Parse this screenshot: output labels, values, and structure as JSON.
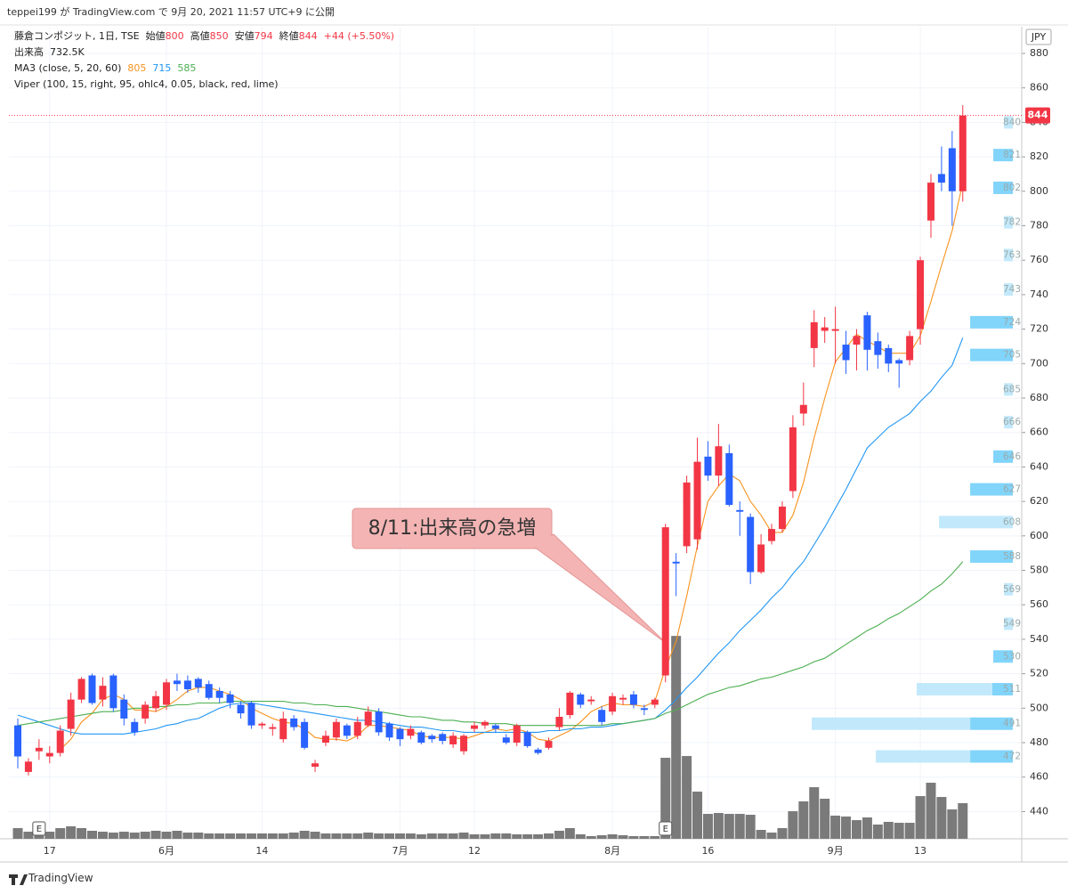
{
  "header": "teppei199 が TradingView.com で 9月 20, 2021 11:57 UTC+9 に公開",
  "footer": "TradingView",
  "chart_data": {
    "type": "candlestick",
    "title": "藤倉コンポジット, 1日, TSE",
    "ohlc_labels": [
      "始値",
      "高値",
      "安値",
      "終値"
    ],
    "change": "+44 (+5.50%)",
    "currency": "JPY",
    "up_color": "#f23645",
    "down_color": "#2962ff",
    "grid": true,
    "categories": [
      null,
      null,
      null,
      "17",
      null,
      null,
      null,
      null,
      null,
      null,
      null,
      null,
      null,
      null,
      "6月",
      null,
      null,
      null,
      null,
      null,
      null,
      null,
      null,
      "14",
      null,
      null,
      null,
      null,
      null,
      null,
      null,
      null,
      null,
      null,
      null,
      null,
      "7月",
      null,
      null,
      null,
      null,
      null,
      null,
      "12",
      null,
      null,
      null,
      null,
      null,
      null,
      null,
      null,
      null,
      null,
      null,
      null,
      "8月",
      null,
      null,
      null,
      null,
      null,
      null,
      null,
      null,
      "16",
      null,
      null,
      null,
      null,
      null,
      null,
      null,
      null,
      null,
      null,
      null,
      "9月",
      null,
      null,
      null,
      null,
      null,
      null,
      null,
      "13",
      null,
      null,
      null,
      null
    ],
    "open": [
      490,
      463,
      475,
      472,
      474,
      488,
      505,
      519,
      505,
      519,
      505,
      492,
      494,
      500,
      502,
      516,
      516,
      517,
      514,
      510,
      508,
      502,
      503,
      490,
      488,
      482,
      494,
      492,
      466,
      480,
      483,
      490,
      484,
      490,
      498,
      491,
      488,
      484,
      486,
      484,
      485,
      479,
      475,
      488,
      490,
      490,
      483,
      480,
      486,
      476,
      477,
      489,
      496,
      508,
      504,
      499,
      498,
      505,
      508,
      500,
      502,
      519,
      585,
      594,
      598,
      646,
      635,
      648,
      615,
      611,
      579,
      597,
      604,
      626,
      671,
      709,
      719,
      719,
      711,
      711,
      728,
      713,
      709,
      702,
      702,
      720,
      783,
      810,
      825,
      800
    ],
    "high": [
      494,
      471,
      482,
      478,
      490,
      509,
      518,
      520,
      518,
      520,
      508,
      494,
      504,
      510,
      517,
      520,
      519,
      518,
      516,
      512,
      510,
      504,
      504,
      492,
      491,
      498,
      496,
      494,
      470,
      487,
      494,
      491,
      495,
      501,
      500,
      492,
      489,
      490,
      487,
      485,
      486,
      486,
      485,
      492,
      493,
      491,
      485,
      491,
      487,
      477,
      483,
      500,
      510,
      509,
      507,
      501,
      509,
      508,
      510,
      502,
      506,
      607,
      590,
      635,
      657,
      655,
      665,
      653,
      620,
      613,
      601,
      607,
      620,
      670,
      689,
      731,
      727,
      733,
      719,
      720,
      730,
      718,
      711,
      703,
      719,
      762,
      810,
      826,
      835,
      850
    ],
    "low": [
      465,
      461,
      470,
      468,
      472,
      484,
      503,
      502,
      501,
      498,
      490,
      484,
      491,
      498,
      499,
      510,
      509,
      509,
      505,
      503,
      500,
      494,
      488,
      488,
      484,
      480,
      487,
      476,
      463,
      478,
      481,
      482,
      482,
      489,
      484,
      481,
      478,
      482,
      479,
      480,
      479,
      477,
      473,
      486,
      488,
      486,
      479,
      478,
      477,
      473,
      476,
      487,
      494,
      500,
      502,
      490,
      496,
      502,
      500,
      496,
      500,
      515,
      565,
      590,
      592,
      632,
      629,
      617,
      600,
      572,
      578,
      595,
      602,
      622,
      664,
      698,
      712,
      700,
      694,
      696,
      696,
      697,
      695,
      686,
      699,
      711,
      773,
      800,
      780,
      794
    ],
    "close": [
      472,
      469,
      477,
      474,
      487,
      505,
      517,
      503,
      513,
      500,
      494,
      486,
      502,
      507,
      515,
      514,
      511,
      512,
      506,
      506,
      503,
      497,
      490,
      491,
      489,
      494,
      489,
      477,
      468,
      484,
      492,
      484,
      492,
      498,
      486,
      483,
      482,
      488,
      480,
      482,
      481,
      484,
      484,
      490,
      492,
      488,
      480,
      490,
      478,
      474,
      481,
      495,
      509,
      502,
      505,
      492,
      507,
      506,
      502,
      499,
      505,
      605,
      584,
      631,
      643,
      635,
      652,
      618,
      614,
      579,
      595,
      604,
      617,
      663,
      676,
      724,
      721,
      720,
      702,
      716,
      708,
      705,
      700,
      700,
      716,
      760,
      805,
      805,
      800,
      844
    ],
    "ylim": [
      424.2,
      895.5
    ],
    "yticks": [
      440,
      460,
      480,
      500,
      520,
      540,
      560,
      580,
      600,
      620,
      640,
      660,
      680,
      700,
      720,
      740,
      760,
      780,
      800,
      820,
      840,
      860,
      880
    ],
    "earnings": {
      "label": "E",
      "categories": [
        2,
        61
      ]
    },
    "annotation": "8/11:出来高の急増",
    "volume": {
      "label": "出来高",
      "color": "#7a7a7a",
      "ylim": [
        0,
        16700
      ],
      "values": [
        220,
        146,
        146,
        146,
        220,
        256,
        220,
        165,
        146,
        128,
        146,
        128,
        146,
        165,
        146,
        165,
        128,
        128,
        110,
        110,
        110,
        110,
        110,
        110,
        110,
        110,
        128,
        165,
        146,
        110,
        110,
        110,
        110,
        128,
        110,
        110,
        110,
        110,
        92,
        110,
        110,
        110,
        128,
        92,
        92,
        110,
        110,
        92,
        92,
        92,
        110,
        165,
        220,
        92,
        55,
        73,
        92,
        73,
        55,
        55,
        55,
        1666,
        4172,
        1702,
        970,
        512,
        531,
        512,
        512,
        494,
        183,
        128,
        220,
        567,
        769,
        1061,
        824,
        476,
        458,
        384,
        439,
        293,
        348,
        329,
        329,
        878,
        1153,
        860,
        604,
        732.5
      ],
      "value_labels": [
        null,
        null,
        null,
        null,
        null,
        null,
        null,
        null,
        null,
        null,
        null,
        null,
        null,
        null,
        null,
        null,
        null,
        null,
        null,
        null,
        null,
        null,
        null,
        null,
        null,
        null,
        null,
        null,
        null,
        null,
        null,
        null,
        null,
        null,
        null,
        null,
        null,
        null,
        null,
        null,
        null,
        null,
        null,
        null,
        null,
        null,
        null,
        null,
        null,
        null,
        null,
        null,
        null,
        null,
        null,
        null,
        null,
        null,
        null,
        null,
        null,
        null,
        null,
        null,
        null,
        null,
        null,
        null,
        null,
        null,
        null,
        null,
        null,
        null,
        null,
        null,
        null,
        null,
        null,
        null,
        null,
        null,
        null,
        null,
        null,
        null,
        null,
        null,
        null,
        "732.5K"
      ]
    },
    "ma": {
      "label": "MA3 (close, 5, 20, 60)",
      "series": [
        {
          "color": "#f7931e",
          "values": [
            null,
            null,
            null,
            null,
            476,
            482,
            492,
            497,
            505,
            508,
            505,
            499,
            499,
            498,
            501,
            505,
            510,
            512,
            512,
            510,
            508,
            505,
            500,
            497,
            494,
            492,
            491,
            488,
            483,
            482,
            482,
            481,
            484,
            490,
            490,
            489,
            488,
            487,
            484,
            483,
            483,
            483,
            482,
            484,
            486,
            488,
            487,
            488,
            486,
            482,
            481,
            484,
            487,
            492,
            498,
            501,
            503,
            502,
            502,
            501,
            504,
            523,
            539,
            565,
            594,
            620,
            629,
            636,
            632,
            620,
            612,
            602,
            602,
            612,
            631,
            657,
            680,
            701,
            709,
            717,
            713,
            710,
            706,
            706,
            706,
            716,
            736,
            757,
            777,
            805
          ]
        },
        {
          "color": "#2196f3",
          "values": [
            496,
            494,
            492,
            490,
            488,
            486,
            485,
            485,
            485,
            485,
            485,
            486,
            487,
            488,
            490,
            491,
            493,
            494,
            497,
            500,
            502,
            503,
            503,
            502,
            501,
            500,
            499,
            498,
            497,
            496,
            495,
            494,
            493,
            493,
            492,
            491,
            490,
            489,
            489,
            488,
            487,
            487,
            486,
            486,
            486,
            486,
            486,
            486,
            486,
            486,
            487,
            487,
            488,
            488,
            489,
            489,
            490,
            491,
            492,
            493,
            494,
            499,
            505,
            512,
            518,
            525,
            532,
            538,
            545,
            551,
            557,
            564,
            570,
            578,
            585,
            595,
            605,
            616,
            627,
            639,
            651,
            657,
            663,
            667,
            671,
            678,
            684,
            692,
            699,
            715
          ]
        },
        {
          "color": "#4caf50",
          "values": [
            490,
            491,
            492,
            493,
            494,
            495,
            496,
            497,
            498,
            498,
            499,
            500,
            500,
            501,
            501,
            502,
            502,
            503,
            503,
            503,
            504,
            504,
            504,
            504,
            504,
            504,
            503,
            503,
            502,
            502,
            501,
            501,
            500,
            499,
            498,
            497,
            496,
            495,
            495,
            494,
            493,
            493,
            492,
            492,
            491,
            491,
            491,
            490,
            490,
            490,
            490,
            490,
            490,
            490,
            490,
            490,
            491,
            491,
            492,
            493,
            494,
            497,
            499,
            502,
            505,
            508,
            510,
            512,
            513,
            515,
            517,
            518,
            520,
            522,
            524,
            527,
            529,
            533,
            537,
            541,
            545,
            548,
            552,
            555,
            559,
            563,
            568,
            572,
            578,
            585
          ]
        }
      ]
    },
    "profile": {
      "label": "Viper (100, 15, right, 95, ohlc4, 0.05, black, red, lime)",
      "xlim": [
        0,
        100
      ],
      "levels": [
        840,
        821,
        802,
        782,
        763,
        743,
        724,
        705,
        685,
        666,
        646,
        627,
        608,
        588,
        569,
        549,
        530,
        511,
        491,
        472
      ],
      "series": [
        {
          "color": "#c2e9fb",
          "values": [
            4.4,
            0,
            0,
            4.4,
            4.4,
            4.4,
            0,
            0,
            4.4,
            4.4,
            0,
            0,
            36.7,
            0,
            4.4,
            4.4,
            0,
            37.6,
            78.8,
            46.9
          ]
        },
        {
          "color": "#81d4fa",
          "values": [
            0,
            9.7,
            9.7,
            0,
            0,
            0,
            21.2,
            21.2,
            0,
            0,
            9.7,
            21.2,
            0,
            21.2,
            0,
            0,
            9.7,
            10.2,
            21.2,
            21.2
          ]
        }
      ]
    }
  }
}
